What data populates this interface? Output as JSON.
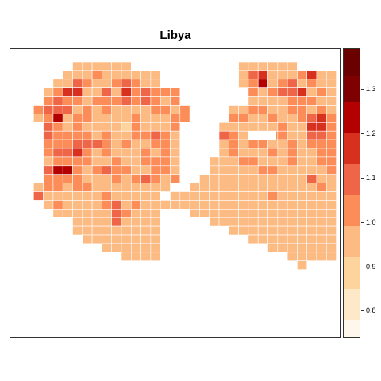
{
  "chart_data": {
    "type": "heatmap",
    "title": "Libya",
    "grid_origin": [
      13,
      78
    ],
    "cell": [
      12.4,
      10.8
    ],
    "legend": {
      "breaks": [
        0.74,
        0.78,
        0.85,
        0.92,
        0.99,
        1.06,
        1.13,
        1.2,
        1.27,
        1.33,
        1.39
      ],
      "colors": [
        "#fff7ec",
        "#fee8c8",
        "#fdd49e",
        "#fdbb84",
        "#fc8d59",
        "#ef6548",
        "#d7301f",
        "#b30000",
        "#7f0000",
        "#6b0000"
      ],
      "ticks": [
        0.8,
        0.9,
        1.0,
        1.1,
        1.2,
        1.3
      ],
      "tick_labels": [
        "0.8",
        "0.9",
        "1.0",
        "1.1",
        "1.2",
        "1.3"
      ]
    },
    "rows": [
      {
        "cols": [
          5,
          10
        ],
        "codes": "333333",
        "notes": ""
      },
      {
        "cols": [
          4,
          13
        ],
        "codes": "3334333333",
        "special": {
          "4": 2,
          "7": 5,
          "11": 4
        }
      },
      {
        "cols": [
          3,
          13
        ],
        "codes": "33543345433",
        "special": {
          "3": 3
        }
      },
      {
        "cols": [
          2,
          15
        ],
        "codes": "34663353645444"
      },
      {
        "cols": [
          2,
          15
        ],
        "codes": "45443444545434"
      },
      {
        "cols": [
          1,
          16
        ],
        "codes": "4555343433334434"
      },
      {
        "cols": [
          1,
          16
        ],
        "codes": "3473443333433344"
      },
      {
        "cols": [
          2,
          16
        ],
        "codes": "54343333243334"
      },
      {
        "cols": [
          2,
          16
        ],
        "codes": "54444343344543"
      },
      {
        "cols": [
          2,
          16
        ],
        "codes": "44455543433443"
      },
      {
        "cols": [
          2,
          16
        ],
        "codes": "45564343334343"
      },
      {
        "cols": [
          2,
          16
        ],
        "codes": "34444334334443"
      },
      {
        "cols": [
          2,
          16
        ],
        "codes": "57743454433443"
      },
      {
        "cols": [
          2,
          16
        ],
        "codes": "44443334345434"
      },
      {
        "cols": [
          1,
          14
        ],
        "codes": "34434433333333"
      },
      {
        "cols": [
          1,
          13
        ],
        "codes": "5333333433333"
      },
      {
        "cols": [
          2,
          13
        ],
        "codes": "343333453433"
      },
      {
        "cols": [
          3,
          13
        ],
        "codes": "33333354333"
      },
      {
        "cols": [
          5,
          13
        ],
        "codes": "333353333"
      },
      {
        "cols": [
          5,
          13
        ],
        "codes": "333333333"
      },
      {
        "cols": [
          6,
          13
        ],
        "codes": "33333333"
      },
      {
        "cols": [
          8,
          13
        ],
        "codes": "333333"
      },
      {
        "cols": [
          10,
          13
        ],
        "codes": "3333"
      }
    ],
    "east_rows": [
      {
        "cols": [
          22,
          27
        ],
        "codes": "333333"
      },
      {
        "cols": [
          22,
          31
        ],
        "codes": "3563334633"
      },
      {
        "cols": [
          22,
          31
        ],
        "codes": "3473453433"
      },
      {
        "cols": [
          23,
          31
        ],
        "codes": "434556343"
      },
      {
        "cols": [
          23,
          31
        ],
        "codes": "333344433"
      },
      {
        "cols": [
          21,
          31
        ],
        "codes": "33443344343"
      },
      {
        "cols": [
          21,
          31
        ],
        "codes": "44334334564"
      },
      {
        "cols": [
          20,
          31
        ],
        "codes": "333333433664"
      },
      {
        "cols": [
          20,
          31
        ],
        "codes": "543334433554"
      },
      {
        "cols": [
          20,
          31
        ],
        "codes": "343443343444"
      },
      {
        "cols": [
          20,
          31
        ],
        "codes": "343334343344"
      },
      {
        "cols": [
          19,
          31
        ],
        "codes": "3334433343344"
      },
      {
        "cols": [
          19,
          31
        ],
        "codes": "3333344333334"
      },
      {
        "cols": [
          18,
          31
        ],
        "codes": "33333333333533"
      },
      {
        "cols": [
          17,
          31
        ],
        "codes": "333333333333343"
      },
      {
        "cols": [
          15,
          31
        ],
        "codes": "33333333334333333"
      },
      {
        "cols": [
          14,
          31
        ],
        "codes": "333333333333333333"
      },
      {
        "cols": [
          17,
          31
        ],
        "codes": "333333333333333"
      },
      {
        "cols": [
          19,
          31
        ],
        "codes": "3333333333333"
      },
      {
        "cols": [
          21,
          31
        ],
        "codes": "33333333333"
      },
      {
        "cols": [
          23,
          31
        ],
        "codes": "333333333"
      },
      {
        "cols": [
          25,
          31
        ],
        "codes": "3333333"
      },
      {
        "cols": [
          27,
          31
        ],
        "codes": "33333"
      },
      {
        "cols": [
          28,
          28
        ],
        "codes": "3"
      }
    ]
  }
}
